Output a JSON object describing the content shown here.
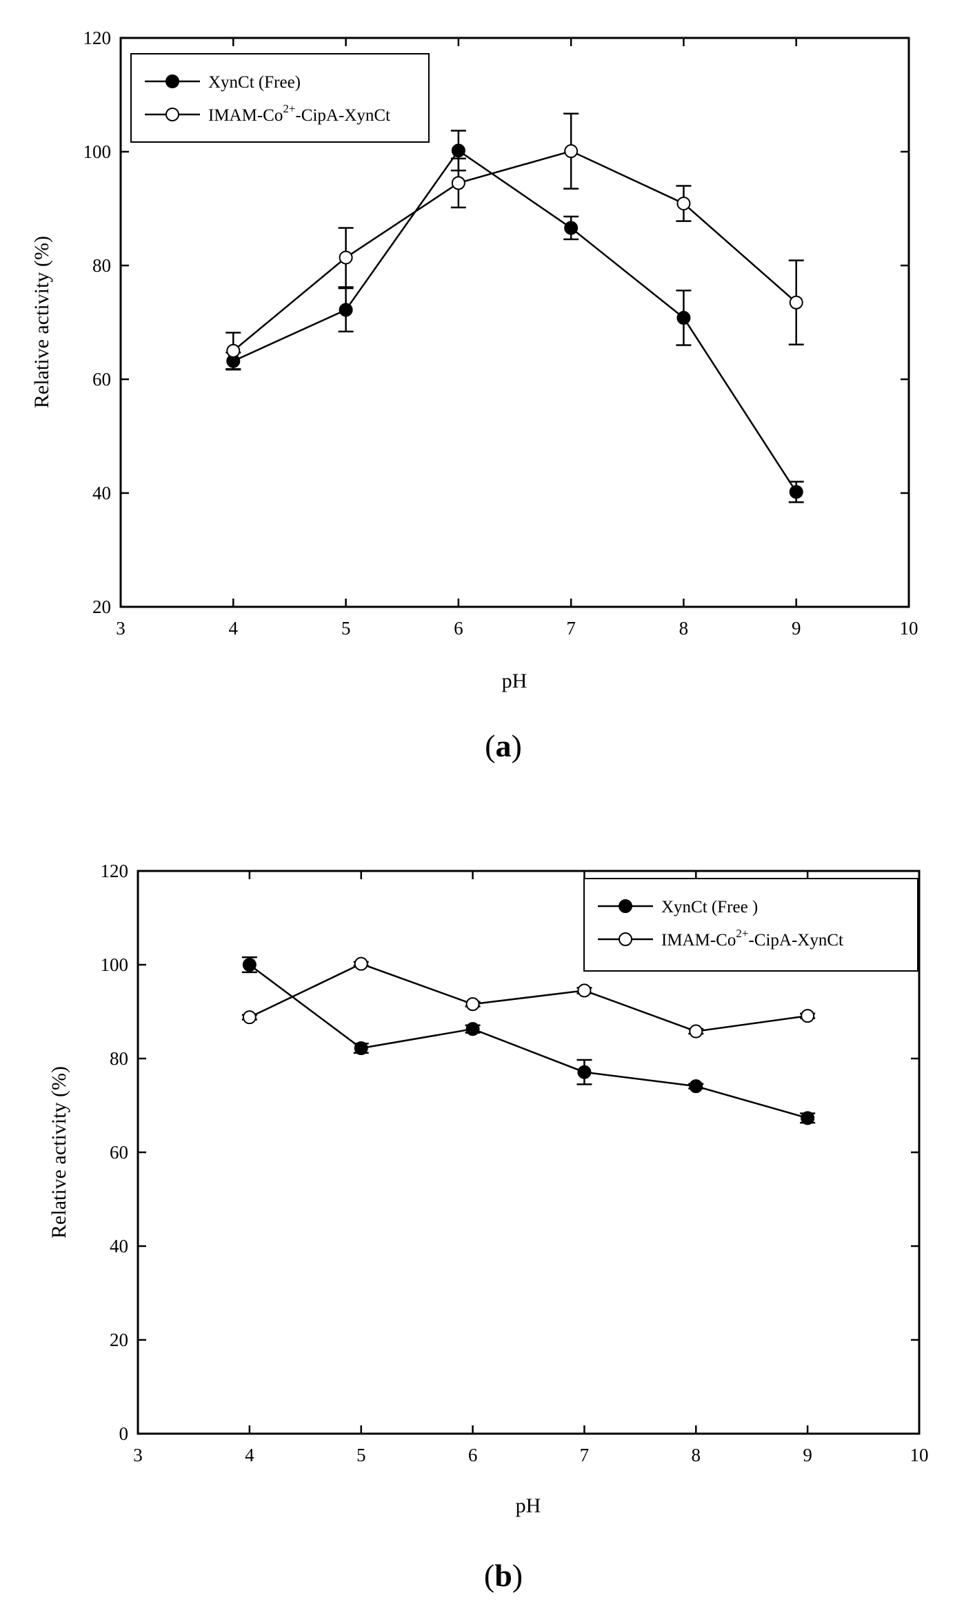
{
  "panel_labels": [
    {
      "open": "(",
      "letter": "a",
      "close": ")"
    },
    {
      "open": "(",
      "letter": "b",
      "close": ")"
    }
  ],
  "chart_data": [
    {
      "type": "line",
      "panel": "a",
      "title": "",
      "xlabel": "pH",
      "ylabel": "Relative activity (%)",
      "xlim": [
        3,
        10
      ],
      "ylim": [
        20,
        120
      ],
      "xticks": [
        3,
        4,
        5,
        6,
        7,
        8,
        9,
        10
      ],
      "yticks": [
        20,
        40,
        60,
        80,
        100,
        120
      ],
      "grid": false,
      "legend_position": "top-left",
      "series": [
        {
          "name": "XynCt (Free)",
          "legend_text": "XynCt (Free)",
          "marker": "filled-circle",
          "color": "#000000",
          "x": [
            4,
            5,
            6,
            7,
            8,
            9
          ],
          "y": [
            63.2,
            72.2,
            100.2,
            86.6,
            70.8,
            40.2
          ],
          "error": [
            1.5,
            3.8,
            3.5,
            2.0,
            4.8,
            1.8
          ]
        },
        {
          "name": "IMAM-Co2+-CipA-XynCt",
          "legend_text": {
            "prefix": "IMAM-Co",
            "sup": "2+",
            "suffix": "-CipA-XynCt"
          },
          "marker": "open-circle",
          "color": "#000000",
          "x": [
            4,
            5,
            6,
            7,
            8,
            9
          ],
          "y": [
            65.0,
            81.4,
            94.5,
            100.1,
            90.9,
            73.5
          ],
          "error": [
            3.2,
            5.2,
            4.3,
            6.6,
            3.1,
            7.4
          ]
        }
      ]
    },
    {
      "type": "line",
      "panel": "b",
      "title": "",
      "xlabel": "pH",
      "ylabel": "Relative activity (%)",
      "xlim": [
        3,
        10
      ],
      "ylim": [
        0,
        120
      ],
      "xticks": [
        3,
        4,
        5,
        6,
        7,
        8,
        9,
        10
      ],
      "yticks": [
        0,
        20,
        40,
        60,
        80,
        100,
        120
      ],
      "grid": false,
      "legend_position": "top-right",
      "series": [
        {
          "name": "XynCt (Free )",
          "legend_text": "XynCt (Free )",
          "marker": "filled-circle",
          "color": "#000000",
          "x": [
            4,
            5,
            6,
            7,
            8,
            9
          ],
          "y": [
            100.0,
            82.2,
            86.3,
            77.1,
            74.1,
            67.3
          ],
          "error": [
            1.6,
            1.0,
            0.8,
            2.6,
            0.5,
            1.0
          ]
        },
        {
          "name": "IMAM-Co2+-CipA-XynCt",
          "legend_text": {
            "prefix": "IMAM-Co",
            "sup": "2+",
            "suffix": "-CipA-XynCt"
          },
          "marker": "open-circle",
          "color": "#000000",
          "x": [
            4,
            5,
            6,
            7,
            8,
            9
          ],
          "y": [
            88.8,
            100.2,
            91.6,
            94.5,
            85.8,
            89.1
          ],
          "error": [
            0.5,
            0.4,
            0.5,
            0.6,
            0.5,
            0.5
          ]
        }
      ]
    }
  ]
}
